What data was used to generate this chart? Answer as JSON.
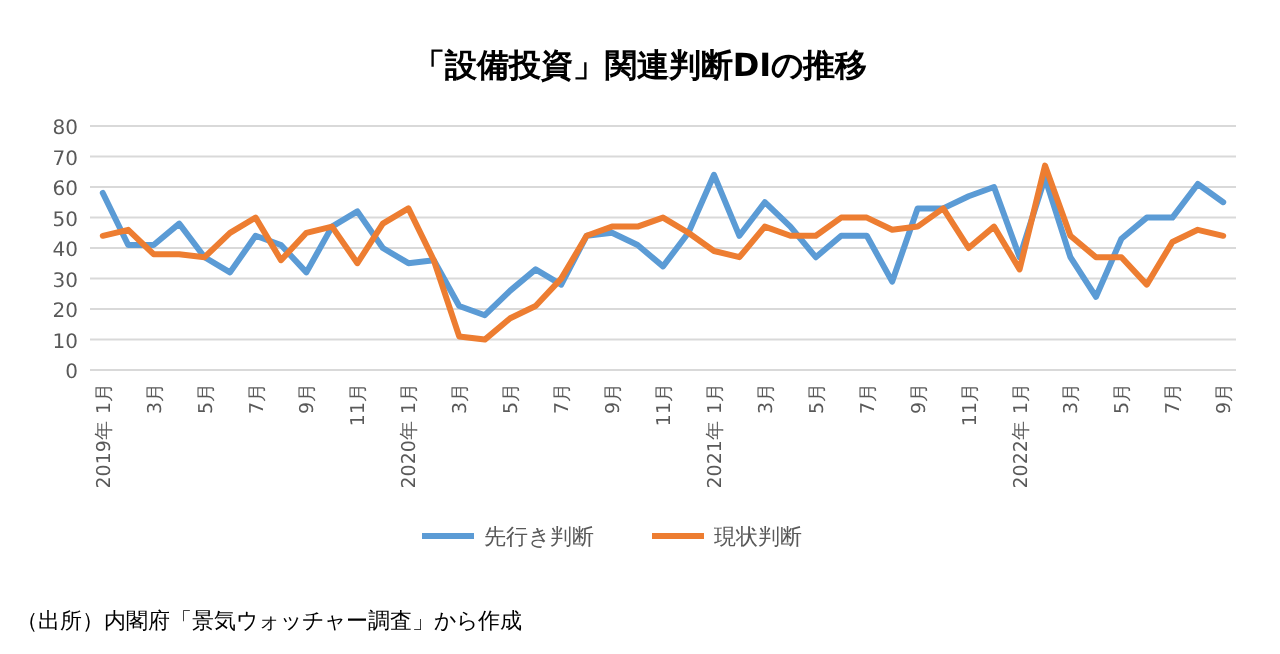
{
  "chart_data": {
    "type": "line",
    "title": "「設備投資」関連判断DIの推移",
    "categories": [
      "2019年 1月",
      null,
      "3月",
      null,
      "5月",
      null,
      "7月",
      null,
      "9月",
      null,
      "11月",
      null,
      "2020年 1月",
      null,
      "3月",
      null,
      "5月",
      null,
      "7月",
      null,
      "9月",
      null,
      "11月",
      null,
      "2021年 1月",
      null,
      "3月",
      null,
      "5月",
      null,
      "7月",
      null,
      "9月",
      null,
      "11月",
      null,
      "2022年 1月",
      null,
      "3月",
      null,
      "5月",
      null,
      "7月",
      null,
      "9月"
    ],
    "series": [
      {
        "name": "先行き判断",
        "color": "#5b9bd5",
        "values": [
          58,
          41,
          41,
          48,
          37,
          32,
          44,
          41,
          32,
          47,
          52,
          40,
          35,
          36,
          21,
          18,
          26,
          33,
          28,
          44,
          45,
          41,
          34,
          45,
          64,
          44,
          55,
          47,
          37,
          44,
          44,
          29,
          53,
          53,
          57,
          60,
          37,
          63,
          37,
          24,
          43,
          50,
          50,
          61,
          55
        ]
      },
      {
        "name": "現状判断",
        "color": "#ed7d31",
        "values": [
          44,
          46,
          38,
          38,
          37,
          45,
          50,
          36,
          45,
          47,
          35,
          48,
          53,
          36,
          11,
          10,
          17,
          21,
          30,
          44,
          47,
          47,
          50,
          45,
          39,
          37,
          47,
          44,
          44,
          50,
          50,
          46,
          47,
          53,
          40,
          47,
          33,
          67,
          44,
          37,
          37,
          28,
          42,
          46,
          44
        ]
      }
    ],
    "ylim": [
      0,
      80
    ],
    "yticks": [
      0,
      10,
      20,
      30,
      40,
      50,
      60,
      70,
      80
    ],
    "grid": "y",
    "legend": "bottom",
    "marker": "none",
    "line_style": "solid",
    "annotations": [
      "（出所）内閣府「景気ウォッチャー調査」から作成"
    ]
  }
}
